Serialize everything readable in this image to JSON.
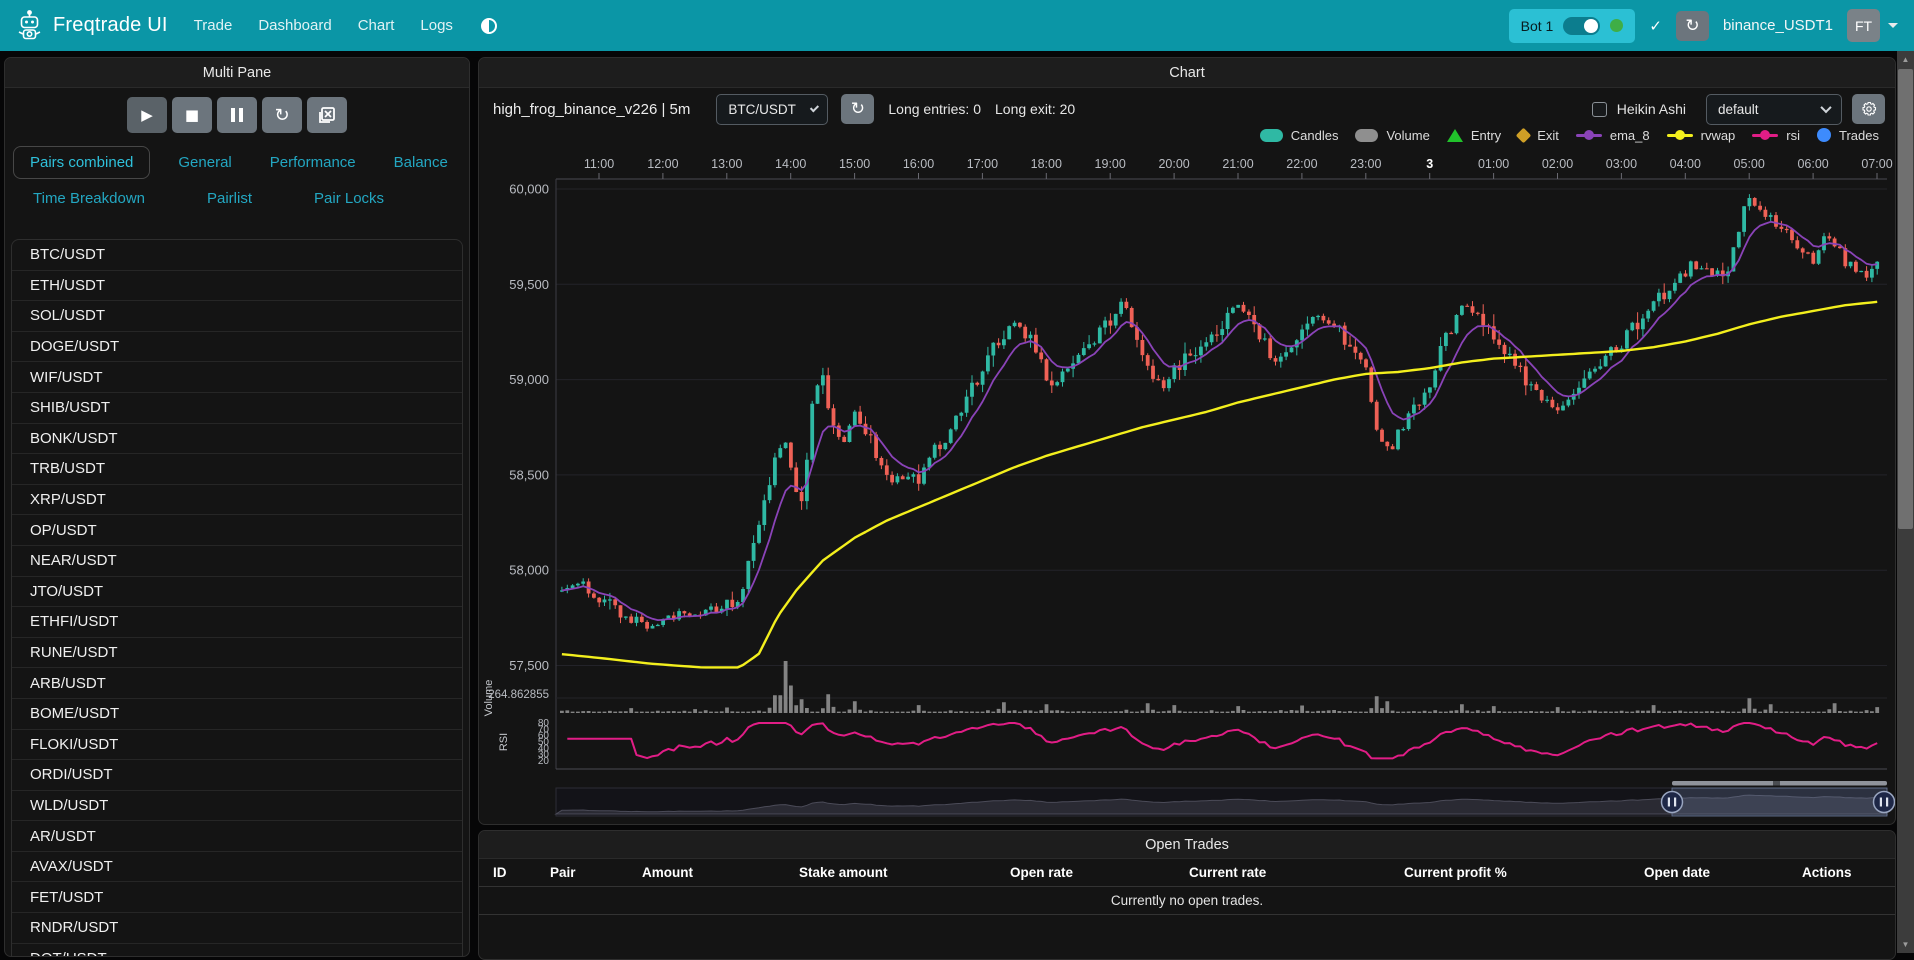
{
  "navbar": {
    "brand": "Freqtrade UI",
    "items": [
      "Trade",
      "Dashboard",
      "Chart",
      "Logs"
    ],
    "bot_label": "Bot 1",
    "check_icon": "✓",
    "refresh_icon": "↻",
    "exchange": "binance_USDT1",
    "avatar": "FT"
  },
  "left_panel": {
    "title": "Multi Pane",
    "controls": [
      "play",
      "stop",
      "pause",
      "reload",
      "remove-chart"
    ],
    "tabs_row1": [
      "Pairs combined",
      "General",
      "Performance",
      "Balance"
    ],
    "tabs_row2": [
      "Time Breakdown",
      "Pairlist",
      "Pair Locks"
    ],
    "active_tab": "Pairs combined",
    "pairs": [
      "BTC/USDT",
      "ETH/USDT",
      "SOL/USDT",
      "DOGE/USDT",
      "WIF/USDT",
      "SHIB/USDT",
      "BONK/USDT",
      "TRB/USDT",
      "XRP/USDT",
      "OP/USDT",
      "NEAR/USDT",
      "JTO/USDT",
      "ETHFI/USDT",
      "RUNE/USDT",
      "ARB/USDT",
      "BOME/USDT",
      "FLOKI/USDT",
      "ORDI/USDT",
      "WLD/USDT",
      "AR/USDT",
      "AVAX/USDT",
      "FET/USDT",
      "RNDR/USDT",
      "DOT/USDT"
    ]
  },
  "chart_panel": {
    "title": "Chart",
    "strategy": "high_frog_binance_v226 | 5m",
    "pair_select": "BTC/USDT",
    "entries_label": "Long entries: 0",
    "exit_label": "Long exit: 20",
    "heikin_label": "Heikin Ashi",
    "plot_config": "default",
    "legend": [
      {
        "label": "Candles",
        "shape": "roundrect",
        "color": "#2fb9a4"
      },
      {
        "label": "Volume",
        "shape": "roundrect",
        "color": "#8f8f8f"
      },
      {
        "label": "Entry",
        "shape": "triangle",
        "color": "#21c22b"
      },
      {
        "label": "Exit",
        "shape": "diamond",
        "color": "#cf9f26"
      },
      {
        "label": "ema_8",
        "shape": "linedot",
        "color": "#8a43b8"
      },
      {
        "label": "rvwap",
        "shape": "linedot",
        "color": "#f3ef1d"
      },
      {
        "label": "rsi",
        "shape": "linedot",
        "color": "#e11d86"
      },
      {
        "label": "Trades",
        "shape": "circle",
        "color": "#3d8bfd"
      }
    ]
  },
  "open_trades": {
    "title": "Open Trades",
    "columns": [
      "ID",
      "Pair",
      "Amount",
      "Stake amount",
      "Open rate",
      "Current rate",
      "Current profit %",
      "Open date",
      "Actions"
    ],
    "empty": "Currently no open trades."
  },
  "chart_data": {
    "type": "candlestick+volume+rsi",
    "pair": "BTC/USDT",
    "timeframe": "5m",
    "x_ticks": [
      "11:00",
      "12:00",
      "13:00",
      "14:00",
      "15:00",
      "16:00",
      "17:00",
      "18:00",
      "19:00",
      "20:00",
      "21:00",
      "22:00",
      "23:00",
      "3",
      "01:00",
      "02:00",
      "03:00",
      "04:00",
      "05:00",
      "06:00",
      "07:00"
    ],
    "bold_tick": "3",
    "y_ticks": [
      60000,
      59500,
      59000,
      58500,
      58000,
      57500
    ],
    "ylim": [
      57400,
      60100
    ],
    "rsi_ticks": [
      80,
      70,
      60,
      50,
      40,
      30,
      20
    ],
    "volume_axis_label": "264.862855",
    "volume_max": 264.862855,
    "volume_pane_label": "Volume",
    "rsi_pane_label": "RSI",
    "t_range": [
      -0.58,
      20.06
    ],
    "candle_interval_h": 0.0833333,
    "price_anchors": [
      [
        -0.6,
        57890
      ],
      [
        -0.3,
        57940
      ],
      [
        0,
        57860
      ],
      [
        0.4,
        57760
      ],
      [
        0.8,
        57700
      ],
      [
        1.2,
        57770
      ],
      [
        1.6,
        57780
      ],
      [
        2.0,
        57820
      ],
      [
        2.2,
        57840
      ],
      [
        2.5,
        58250
      ],
      [
        2.75,
        58550
      ],
      [
        2.9,
        58680
      ],
      [
        3.05,
        58480
      ],
      [
        3.2,
        58350
      ],
      [
        3.35,
        58900
      ],
      [
        3.5,
        59030
      ],
      [
        3.65,
        58750
      ],
      [
        3.8,
        58680
      ],
      [
        4.0,
        58820
      ],
      [
        4.2,
        58720
      ],
      [
        4.5,
        58500
      ],
      [
        4.75,
        58470
      ],
      [
        5.0,
        58480
      ],
      [
        5.3,
        58650
      ],
      [
        5.6,
        58780
      ],
      [
        5.9,
        59000
      ],
      [
        6.2,
        59180
      ],
      [
        6.5,
        59300
      ],
      [
        6.8,
        59200
      ],
      [
        7.1,
        58950
      ],
      [
        7.4,
        59080
      ],
      [
        7.7,
        59200
      ],
      [
        8.0,
        59300
      ],
      [
        8.2,
        59400
      ],
      [
        8.5,
        59150
      ],
      [
        8.8,
        58950
      ],
      [
        9.1,
        59080
      ],
      [
        9.4,
        59170
      ],
      [
        9.7,
        59280
      ],
      [
        10.0,
        59380
      ],
      [
        10.3,
        59260
      ],
      [
        10.6,
        59100
      ],
      [
        10.9,
        59230
      ],
      [
        11.2,
        59330
      ],
      [
        11.5,
        59280
      ],
      [
        11.8,
        59170
      ],
      [
        12.0,
        59100
      ],
      [
        12.17,
        58720
      ],
      [
        12.4,
        58650
      ],
      [
        12.7,
        58800
      ],
      [
        13.0,
        58980
      ],
      [
        13.3,
        59260
      ],
      [
        13.55,
        59400
      ],
      [
        13.8,
        59280
      ],
      [
        14.1,
        59180
      ],
      [
        14.4,
        59050
      ],
      [
        14.7,
        58920
      ],
      [
        15.0,
        58850
      ],
      [
        15.3,
        58980
      ],
      [
        15.6,
        59080
      ],
      [
        15.9,
        59160
      ],
      [
        16.2,
        59280
      ],
      [
        16.5,
        59420
      ],
      [
        16.8,
        59480
      ],
      [
        17.1,
        59600
      ],
      [
        17.35,
        59560
      ],
      [
        17.6,
        59520
      ],
      [
        17.8,
        59740
      ],
      [
        18.0,
        59960
      ],
      [
        18.15,
        59880
      ],
      [
        18.35,
        59820
      ],
      [
        18.6,
        59790
      ],
      [
        18.8,
        59700
      ],
      [
        19.0,
        59620
      ],
      [
        19.2,
        59780
      ],
      [
        19.45,
        59650
      ],
      [
        19.7,
        59580
      ],
      [
        19.85,
        59540
      ],
      [
        20.05,
        59640
      ]
    ],
    "rvwap_anchors": [
      [
        -0.6,
        57560
      ],
      [
        0,
        57540
      ],
      [
        0.8,
        57510
      ],
      [
        1.6,
        57490
      ],
      [
        2.2,
        57490
      ],
      [
        2.5,
        57560
      ],
      [
        2.8,
        57760
      ],
      [
        3.1,
        57900
      ],
      [
        3.5,
        58050
      ],
      [
        4.0,
        58170
      ],
      [
        4.5,
        58260
      ],
      [
        5.0,
        58330
      ],
      [
        5.5,
        58400
      ],
      [
        6.0,
        58470
      ],
      [
        6.5,
        58540
      ],
      [
        7.0,
        58600
      ],
      [
        7.5,
        58650
      ],
      [
        8.0,
        58700
      ],
      [
        8.5,
        58750
      ],
      [
        9.0,
        58790
      ],
      [
        9.5,
        58830
      ],
      [
        10.0,
        58880
      ],
      [
        10.5,
        58920
      ],
      [
        11.0,
        58960
      ],
      [
        11.5,
        59000
      ],
      [
        12.0,
        59030
      ],
      [
        12.5,
        59040
      ],
      [
        13.0,
        59060
      ],
      [
        13.5,
        59090
      ],
      [
        14.0,
        59110
      ],
      [
        14.5,
        59120
      ],
      [
        15.0,
        59130
      ],
      [
        15.5,
        59140
      ],
      [
        16.0,
        59150
      ],
      [
        16.5,
        59170
      ],
      [
        17.0,
        59200
      ],
      [
        17.5,
        59240
      ],
      [
        18.0,
        59290
      ],
      [
        18.5,
        59330
      ],
      [
        19.0,
        59360
      ],
      [
        19.5,
        59390
      ],
      [
        20.05,
        59410
      ]
    ],
    "volume_spikes": [
      [
        0.5,
        25
      ],
      [
        1.5,
        20
      ],
      [
        2.0,
        28
      ],
      [
        2.75,
        90
      ],
      [
        2.9,
        264.86
      ],
      [
        3.0,
        140
      ],
      [
        3.2,
        70
      ],
      [
        3.6,
        95
      ],
      [
        4.0,
        60
      ],
      [
        5.0,
        40
      ],
      [
        6.3,
        55
      ],
      [
        7.0,
        45
      ],
      [
        8.6,
        50
      ],
      [
        9.0,
        40
      ],
      [
        10.0,
        35
      ],
      [
        11.0,
        38
      ],
      [
        12.17,
        85
      ],
      [
        12.3,
        60
      ],
      [
        13.5,
        45
      ],
      [
        14.0,
        35
      ],
      [
        15.0,
        30
      ],
      [
        16.5,
        40
      ],
      [
        18.0,
        75
      ],
      [
        18.3,
        45
      ],
      [
        19.3,
        50
      ],
      [
        20.0,
        30
      ]
    ],
    "ema_period": 8,
    "rsi_period": 14
  }
}
